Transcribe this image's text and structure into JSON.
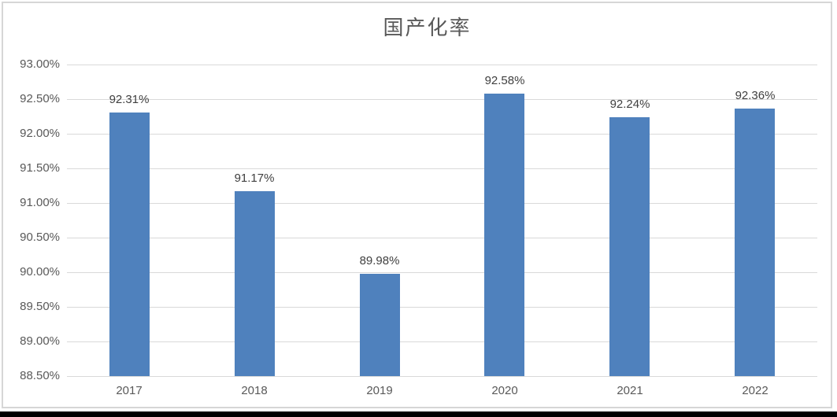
{
  "chart": {
    "background_color": "#ffffff",
    "frame_border_color": "#d6d6d6",
    "bottom_edge_color": "#000000",
    "bar_color": "#4f81bd",
    "gridline_color": "#d9d9d9",
    "axis_text_color": "#595959",
    "data_label_color": "#404040",
    "title_color": "#595959"
  },
  "chart_data": {
    "type": "bar",
    "title": "国产化率",
    "categories": [
      "2017",
      "2018",
      "2019",
      "2020",
      "2021",
      "2022"
    ],
    "values": [
      92.31,
      91.17,
      89.98,
      92.58,
      92.24,
      92.36
    ],
    "data_labels": [
      "92.31%",
      "91.17%",
      "89.98%",
      "92.58%",
      "92.24%",
      "92.36%"
    ],
    "xlabel": "",
    "ylabel": "",
    "ylim": [
      88.5,
      93.0
    ],
    "ytick_step": 0.5,
    "ytick_labels": [
      "88.50%",
      "89.00%",
      "89.50%",
      "90.00%",
      "90.50%",
      "91.00%",
      "91.50%",
      "92.00%",
      "92.50%",
      "93.00%"
    ],
    "grid": true,
    "legend": false,
    "series_count": 1
  }
}
